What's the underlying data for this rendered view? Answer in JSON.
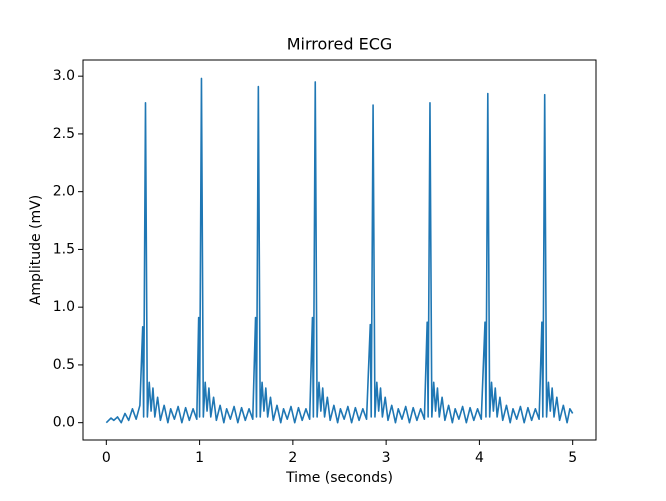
{
  "chart_data": {
    "type": "line",
    "title": "Mirrored ECG",
    "xlabel": "Time (seconds)",
    "ylabel": "Amplitude (mV)",
    "x": [
      0,
      0.05,
      0.08,
      0.12,
      0.16,
      0.2,
      0.24,
      0.28,
      0.32,
      0.36,
      0.39,
      0.4,
      0.42,
      0.44,
      0.46,
      0.48,
      0.5,
      0.52,
      0.55,
      0.58,
      0.62,
      0.66,
      0.69,
      0.73,
      0.77,
      0.81,
      0.85,
      0.89,
      0.93,
      0.97,
      0.99,
      1.0,
      1.02,
      1.04,
      1.06,
      1.08,
      1.1,
      1.12,
      1.15,
      1.18,
      1.22,
      1.26,
      1.29,
      1.33,
      1.37,
      1.41,
      1.45,
      1.49,
      1.53,
      1.57,
      1.6,
      1.61,
      1.63,
      1.65,
      1.67,
      1.69,
      1.71,
      1.73,
      1.76,
      1.79,
      1.83,
      1.87,
      1.9,
      1.94,
      1.98,
      2.02,
      2.06,
      2.1,
      2.14,
      2.18,
      2.21,
      2.22,
      2.24,
      2.26,
      2.28,
      2.3,
      2.32,
      2.34,
      2.37,
      2.4,
      2.44,
      2.48,
      2.51,
      2.55,
      2.59,
      2.63,
      2.67,
      2.71,
      2.75,
      2.79,
      2.83,
      2.84,
      2.86,
      2.88,
      2.9,
      2.92,
      2.94,
      2.96,
      2.99,
      3.02,
      3.06,
      3.1,
      3.13,
      3.17,
      3.21,
      3.25,
      3.29,
      3.33,
      3.37,
      3.41,
      3.44,
      3.45,
      3.47,
      3.49,
      3.51,
      3.53,
      3.55,
      3.57,
      3.6,
      3.63,
      3.67,
      3.71,
      3.74,
      3.78,
      3.82,
      3.86,
      3.9,
      3.94,
      3.98,
      4.02,
      4.06,
      4.07,
      4.09,
      4.11,
      4.13,
      4.15,
      4.17,
      4.19,
      4.22,
      4.25,
      4.29,
      4.33,
      4.36,
      4.4,
      4.44,
      4.48,
      4.52,
      4.56,
      4.6,
      4.64,
      4.67,
      4.68,
      4.7,
      4.72,
      4.74,
      4.76,
      4.78,
      4.8,
      4.83,
      4.86,
      4.9,
      4.94,
      4.97,
      5.0
    ],
    "series": [
      {
        "color": "#1f77b4",
        "values": [
          0,
          0.04,
          0.02,
          0.05,
          0,
          0.08,
          0.02,
          0.12,
          0.03,
          0.15,
          0.83,
          0.05,
          2.77,
          0.05,
          0.35,
          0.1,
          0.3,
          0.05,
          0.22,
          0.02,
          0.15,
          0,
          0.12,
          0.03,
          0.14,
          0,
          0.13,
          0.02,
          0.12,
          0.03,
          0.91,
          0.05,
          2.98,
          0.05,
          0.35,
          0.1,
          0.3,
          0.05,
          0.22,
          0.02,
          0.15,
          0,
          0.12,
          0.03,
          0.14,
          0,
          0.13,
          0.02,
          0.12,
          0.03,
          0.91,
          0.05,
          2.91,
          0.05,
          0.35,
          0.1,
          0.3,
          0.05,
          0.22,
          0.02,
          0.15,
          0,
          0.12,
          0.03,
          0.14,
          0,
          0.13,
          0.02,
          0.12,
          0.03,
          0.91,
          0.05,
          2.95,
          0.05,
          0.35,
          0.1,
          0.3,
          0.05,
          0.22,
          0.02,
          0.15,
          0,
          0.12,
          0.03,
          0.14,
          0,
          0.13,
          0.02,
          0.12,
          0.03,
          0.85,
          0.05,
          2.75,
          0.05,
          0.35,
          0.1,
          0.3,
          0.05,
          0.22,
          0.02,
          0.15,
          0,
          0.12,
          0.03,
          0.14,
          0,
          0.13,
          0.02,
          0.12,
          0.03,
          0.87,
          0.05,
          2.77,
          0.05,
          0.35,
          0.1,
          0.3,
          0.05,
          0.22,
          0.02,
          0.15,
          0,
          0.12,
          0.03,
          0.14,
          0,
          0.13,
          0.02,
          0.12,
          0.03,
          0.87,
          0.05,
          2.85,
          0.05,
          0.35,
          0.1,
          0.3,
          0.05,
          0.22,
          0.02,
          0.15,
          0,
          0.12,
          0.03,
          0.14,
          0,
          0.13,
          0.02,
          0.12,
          0.03,
          0.87,
          0.05,
          2.84,
          0.05,
          0.35,
          0.1,
          0.3,
          0.05,
          0.22,
          0.02,
          0.15,
          0,
          0.12,
          0.08
        ]
      }
    ],
    "xlim": [
      -0.25,
      5.25
    ],
    "ylim": [
      -0.15,
      3.14
    ],
    "xticks": [
      0,
      1,
      2,
      3,
      4,
      5
    ],
    "yticks": [
      {
        "value": 0,
        "label": "0.0"
      },
      0.5,
      {
        "value": 1,
        "label": "1.0"
      },
      1.5,
      {
        "value": 2,
        "label": "2.0"
      },
      2.5,
      {
        "value": 3,
        "label": "3.0"
      }
    ],
    "grid": false
  }
}
